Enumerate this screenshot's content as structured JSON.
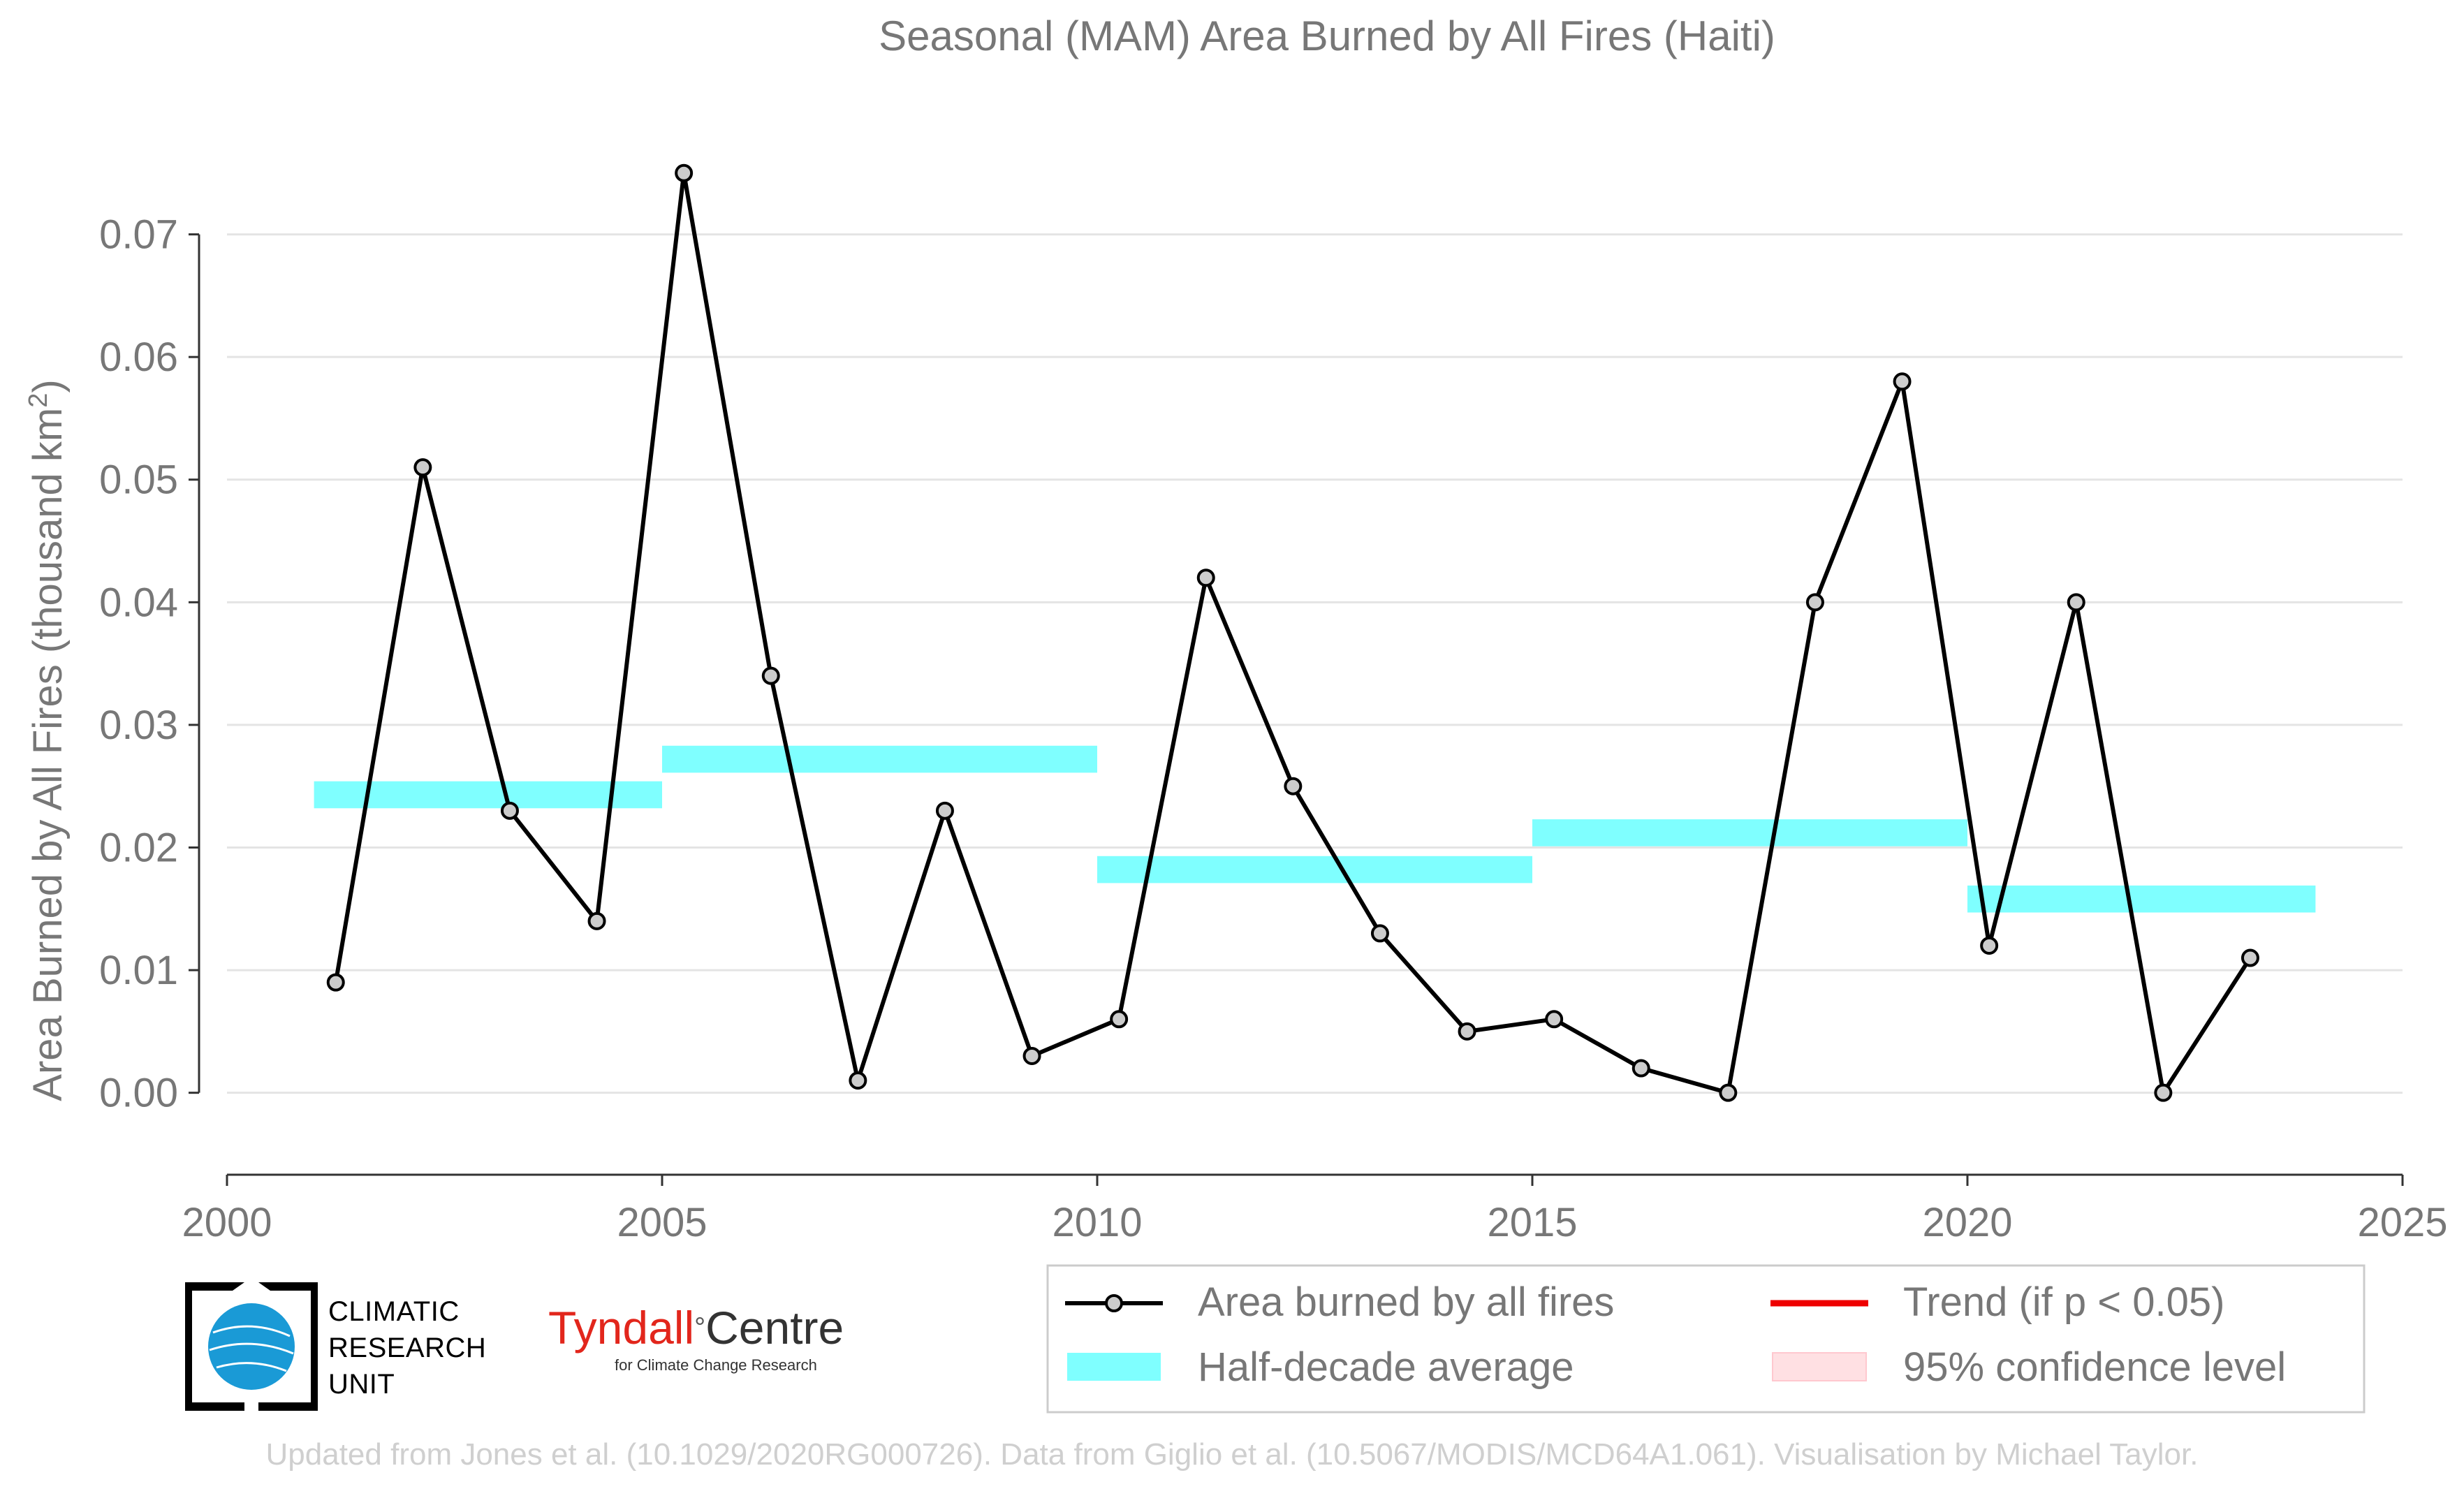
{
  "chart_data": {
    "type": "line",
    "title": "Seasonal (MAM) Area Burned by All Fires (Haiti)",
    "ylabel": "Area Burned by All Fires (thousand km",
    "ylabel_sup": "2",
    "ylabel_end": ")",
    "xlim": [
      2000,
      2025
    ],
    "ylim": [
      -0.006,
      0.08
    ],
    "x_ticks": [
      2000,
      2005,
      2010,
      2015,
      2020,
      2025
    ],
    "y_ticks": [
      0.0,
      0.01,
      0.02,
      0.03,
      0.04,
      0.05,
      0.06,
      0.07
    ],
    "y_tick_labels": [
      "0.00",
      "0.01",
      "0.02",
      "0.03",
      "0.04",
      "0.05",
      "0.06",
      "0.07"
    ],
    "grid": "horizontal",
    "legend_position": "bottom-right",
    "series": [
      {
        "name": "Area burned by all fires",
        "color": "#000000",
        "marker_fill": "#cccccc",
        "x": [
          2001.25,
          2002.25,
          2003.25,
          2004.25,
          2005.25,
          2006.25,
          2007.25,
          2008.25,
          2009.25,
          2010.25,
          2011.25,
          2012.25,
          2013.25,
          2014.25,
          2015.25,
          2016.25,
          2017.25,
          2018.25,
          2019.25,
          2020.25,
          2021.25,
          2022.25,
          2023.25
        ],
        "y": [
          0.009,
          0.051,
          0.023,
          0.014,
          0.075,
          0.034,
          0.001,
          0.023,
          0.003,
          0.006,
          0.042,
          0.025,
          0.013,
          0.005,
          0.006,
          0.002,
          0.0,
          0.04,
          0.058,
          0.012,
          0.04,
          0.0,
          0.011
        ]
      }
    ],
    "half_decade_average": {
      "name": "Half-decade average",
      "color": "#7fffff",
      "segments": [
        {
          "x0": 2001,
          "x1": 2005,
          "y": 0.0243
        },
        {
          "x0": 2005,
          "x1": 2010,
          "y": 0.0272
        },
        {
          "x0": 2010,
          "x1": 2015,
          "y": 0.0182
        },
        {
          "x0": 2015,
          "x1": 2020,
          "y": 0.0212
        },
        {
          "x0": 2020,
          "x1": 2024,
          "y": 0.0158
        }
      ]
    },
    "legend": [
      {
        "label": "Area burned by all fires",
        "kind": "line-marker",
        "color": "#000000"
      },
      {
        "label": "Trend (if p < 0.05)",
        "kind": "line",
        "color": "#ee0000"
      },
      {
        "label": "Half-decade average",
        "kind": "band",
        "color": "#7fffff"
      },
      {
        "label": "95% confidence level",
        "kind": "band",
        "color": "#ffe0e3"
      }
    ]
  },
  "logos": {
    "cru": [
      "CLIMATIC",
      "RESEARCH",
      "UNIT"
    ],
    "tyndall_name": "Tyndall",
    "tyndall_deg": "°",
    "tyndall_centre": "Centre",
    "tyndall_sub": "for Climate Change Research"
  },
  "credit": "Updated from Jones et al. (10.1029/2020RG000726). Data from Giglio et al. (10.5067/MODIS/MCD64A1.061). Visualisation by Michael Taylor."
}
